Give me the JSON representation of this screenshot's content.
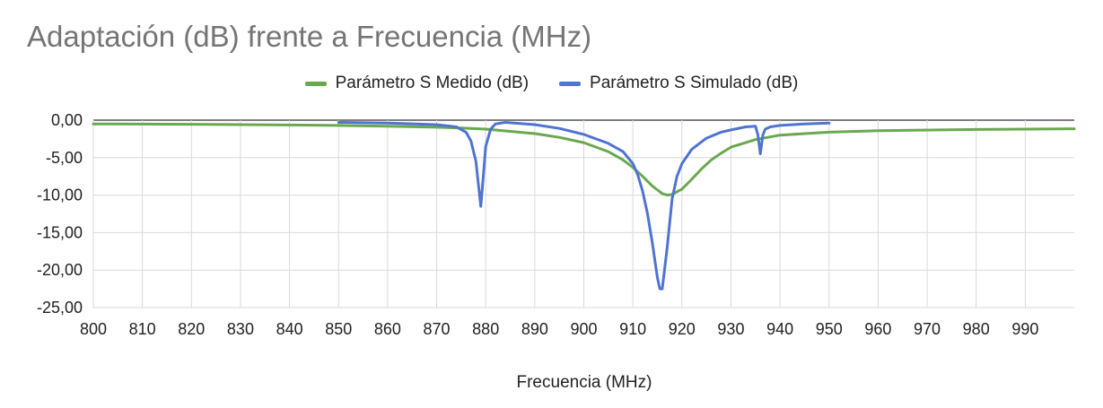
{
  "chart_data": {
    "type": "line",
    "title": "Adaptación (dB) frente a Frecuencia (MHz)",
    "xlabel": "Frecuencia (MHz)",
    "ylabel": "",
    "xlim": [
      800,
      1000
    ],
    "ylim": [
      -25,
      0
    ],
    "x_ticks": [
      "800",
      "810",
      "820",
      "830",
      "840",
      "850",
      "860",
      "870",
      "880",
      "890",
      "900",
      "910",
      "920",
      "930",
      "940",
      "950",
      "960",
      "970",
      "980",
      "990"
    ],
    "y_ticks": [
      "0,00",
      "-5,00",
      "-10,00",
      "-15,00",
      "-20,00",
      "-25,00"
    ],
    "grid": true,
    "legend": "top",
    "series": [
      {
        "name": "Parámetro S Medido (dB)",
        "color": "#6aa84f",
        "x": [
          800,
          820,
          840,
          850,
          860,
          870,
          875,
          880,
          885,
          890,
          895,
          900,
          905,
          908,
          910,
          912,
          914,
          916,
          917,
          918,
          920,
          922,
          924,
          926,
          928,
          930,
          935,
          940,
          950,
          960,
          980,
          1000
        ],
        "y": [
          -0.5,
          -0.55,
          -0.65,
          -0.7,
          -0.8,
          -0.95,
          -1.05,
          -1.2,
          -1.5,
          -1.8,
          -2.3,
          -3.0,
          -4.2,
          -5.3,
          -6.3,
          -7.5,
          -8.8,
          -9.8,
          -10.0,
          -9.9,
          -9.2,
          -7.9,
          -6.5,
          -5.3,
          -4.4,
          -3.6,
          -2.6,
          -2.0,
          -1.6,
          -1.4,
          -1.25,
          -1.15
        ]
      },
      {
        "name": "Parámetro S Simulado (dB)",
        "color": "#4f74d1",
        "x": [
          850,
          860,
          870,
          874,
          876,
          877,
          878,
          878.5,
          879,
          879.5,
          880,
          881,
          882,
          884,
          890,
          895,
          900,
          905,
          908,
          910,
          911,
          912,
          913,
          914,
          915,
          915.5,
          916,
          917,
          918,
          919,
          920,
          922,
          925,
          928,
          930,
          933,
          935,
          935.5,
          936,
          936.5,
          937,
          938,
          940,
          945,
          950
        ],
        "y": [
          -0.3,
          -0.4,
          -0.6,
          -0.9,
          -1.6,
          -2.8,
          -5.5,
          -8.5,
          -11.5,
          -7.5,
          -3.5,
          -1.2,
          -0.5,
          -0.3,
          -0.6,
          -1.1,
          -1.9,
          -3.1,
          -4.2,
          -5.8,
          -7.3,
          -9.5,
          -12.5,
          -16.5,
          -21.0,
          -22.5,
          -22.5,
          -17.0,
          -10.5,
          -7.5,
          -5.8,
          -3.9,
          -2.4,
          -1.6,
          -1.3,
          -0.9,
          -0.8,
          -2.0,
          -4.5,
          -2.0,
          -1.2,
          -0.9,
          -0.7,
          -0.5,
          -0.4
        ]
      }
    ]
  }
}
